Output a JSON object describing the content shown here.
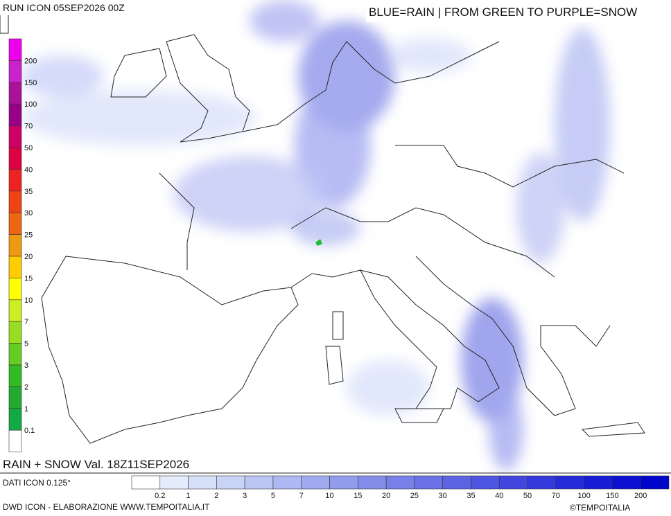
{
  "header": {
    "run": "RUN ICON 05SEP2026 00Z",
    "legend_note": "BLUE=RAIN | FROM GREEN TO PURPLE=SNOW"
  },
  "map_title": "RAIN + SNOW Val. 18Z11SEP2026",
  "snow_scale": {
    "labels": [
      200,
      150,
      100,
      70,
      50,
      40,
      35,
      30,
      25,
      20,
      15,
      10,
      7,
      5,
      3,
      2,
      1,
      0.1
    ],
    "colors": [
      "#ee00ee",
      "#cc22cc",
      "#aa1199",
      "#990088",
      "#cc0066",
      "#dd0044",
      "#ee2222",
      "#ee4411",
      "#ee6611",
      "#ee9911",
      "#ffcc00",
      "#ffff00",
      "#ccee22",
      "#99dd22",
      "#66cc22",
      "#33bb22",
      "#22aa33",
      "#11aa44",
      "#ffffff"
    ]
  },
  "rain_scale": {
    "labels": [
      0.2,
      1,
      2,
      3,
      5,
      7,
      10,
      15,
      20,
      25,
      30,
      35,
      40,
      50,
      70,
      100,
      150,
      200
    ],
    "colors": [
      "#ffffff",
      "#e4ecfb",
      "#d6e0f8",
      "#c8d3f6",
      "#bcc6f4",
      "#aeb8f2",
      "#a0aaef",
      "#929cec",
      "#848eea",
      "#7680e8",
      "#6a72e5",
      "#5c64e3",
      "#4e55e0",
      "#4147de",
      "#3339dc",
      "#262bd9",
      "#181ed6",
      "#0b10d3",
      "#0005cc"
    ]
  },
  "data_source": "DATI ICON 0.125°",
  "footer": {
    "credit": "DWD ICON - ELABORAZIONE WWW.TEMPOITALIA.IT",
    "copyright": "©TEMPOITALIA"
  }
}
